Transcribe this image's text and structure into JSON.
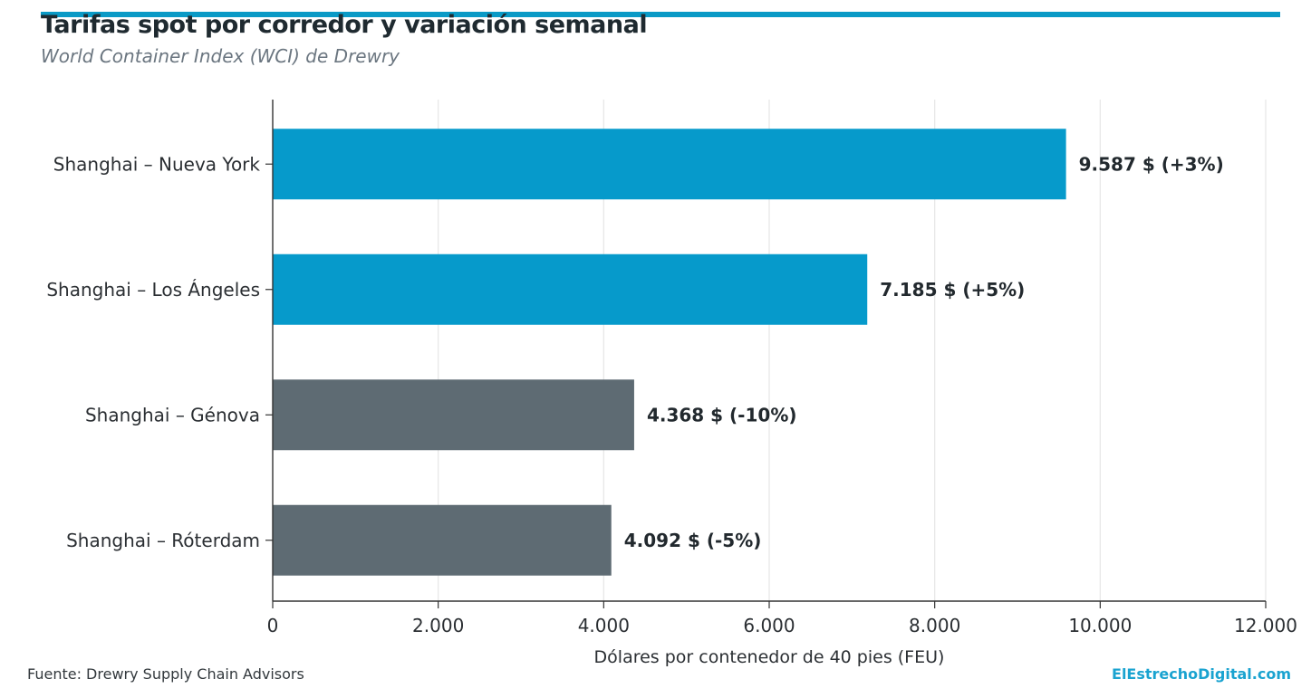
{
  "header": {
    "title": "Tarifas spot por corredor y variación semanal",
    "subtitle": "World Container Index (WCI) de Drewry"
  },
  "footer": {
    "source": "Fuente: Drewry Supply Chain Advisors",
    "brand": "ElEstrechoDigital.com"
  },
  "colors": {
    "accent": "#0a9ac6",
    "us_bars": "#069acb",
    "eu_bars": "#5e6b73",
    "grid": "#e6e6e6",
    "axis": "#333333"
  },
  "chart_data": {
    "type": "bar",
    "orientation": "horizontal",
    "categories": [
      "Shanghai – Nueva York",
      "Shanghai – Los Ángeles",
      "Shanghai – Génova",
      "Shanghai – Róterdam"
    ],
    "values": [
      9587,
      7185,
      4368,
      4092
    ],
    "data_labels": [
      "9.587 $  (+3%)",
      "7.185 $  (+5%)",
      "4.368 $  (-10%)",
      "4.092 $  (-5%)"
    ],
    "weekly_change_pct": [
      3,
      5,
      -10,
      -5
    ],
    "bar_colors": [
      "#069acb",
      "#069acb",
      "#5e6b73",
      "#5e6b73"
    ],
    "xlabel": "Dólares por contenedor de 40 pies (FEU)",
    "xlim": [
      0,
      12000
    ],
    "xticks": [
      0,
      2000,
      4000,
      6000,
      8000,
      10000,
      12000
    ],
    "xtick_labels": [
      "0",
      "2.000",
      "4.000",
      "6.000",
      "8.000",
      "10.000",
      "12.000"
    ],
    "grid": "vertical"
  }
}
